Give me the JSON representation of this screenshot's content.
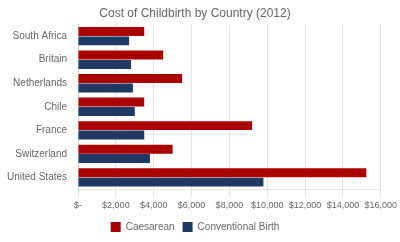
{
  "chart_data": {
    "type": "bar",
    "orientation": "horizontal",
    "title": "Cost of Childbirth by Country (2012)",
    "categories": [
      "United States",
      "Switzerland",
      "France",
      "Chile",
      "Netherlands",
      "Britain",
      "South Africa"
    ],
    "series": [
      {
        "name": "Caesarean",
        "color": "#AA0000",
        "values": [
          15240,
          5000,
          9200,
          3500,
          5500,
          4500,
          3500
        ]
      },
      {
        "name": "Conventional Birth",
        "color": "#1F3864",
        "values": [
          9800,
          3800,
          3500,
          3000,
          2900,
          2800,
          2700
        ]
      }
    ],
    "xlim": [
      0,
      16000
    ],
    "xticks": [
      {
        "value": 0,
        "label": "$-"
      },
      {
        "value": 2000,
        "label": "$2,000"
      },
      {
        "value": 4000,
        "label": "$4,000"
      },
      {
        "value": 6000,
        "label": "$6,000"
      },
      {
        "value": 8000,
        "label": "$8,000"
      },
      {
        "value": 10000,
        "label": "$10,000"
      },
      {
        "value": 12000,
        "label": "$12,000"
      },
      {
        "value": 14000,
        "label": "$14,000"
      },
      {
        "value": 16000,
        "label": "$16,000"
      }
    ],
    "grid": true,
    "legend": "bottom"
  }
}
